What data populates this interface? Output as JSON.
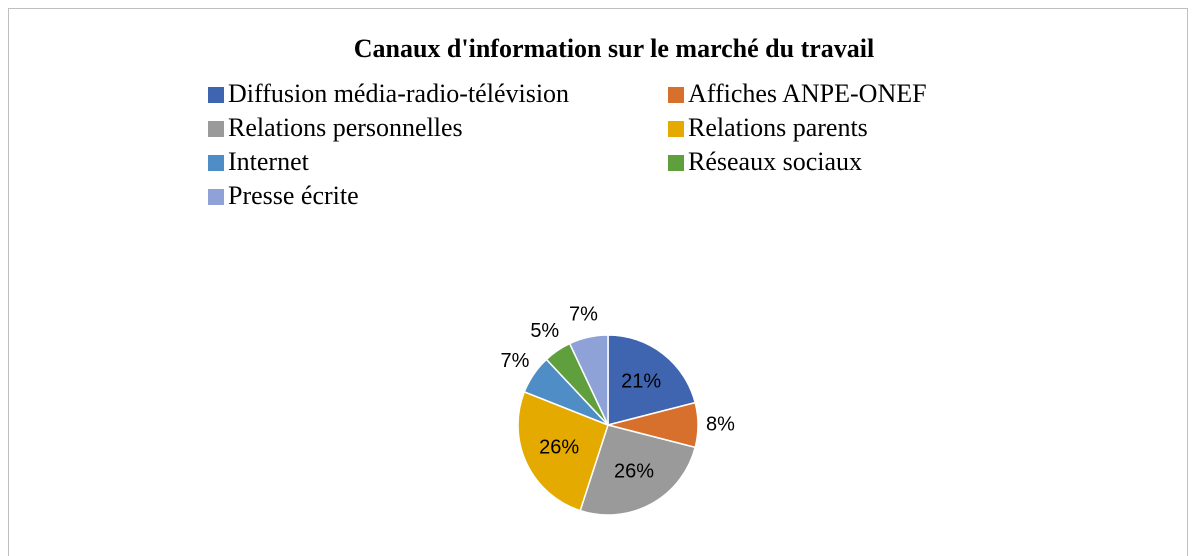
{
  "chart_data": {
    "type": "pie",
    "title": "Canaux d'information sur le marché du travail",
    "categories": [
      "Diffusion média-radio-télévision",
      "Affiches ANPE-ONEF",
      "Relations personnelles",
      "Relations parents",
      "Internet",
      "Réseaux sociaux",
      "Presse écrite"
    ],
    "values": [
      21,
      8,
      26,
      26,
      7,
      5,
      7
    ],
    "value_labels": [
      "21%",
      "8%",
      "26%",
      "26%",
      "7%",
      "5%",
      "7%"
    ],
    "colors": [
      "#4065b0",
      "#d8702d",
      "#9a9a9a",
      "#e5aa00",
      "#4f8dc6",
      "#5f9f3d",
      "#8ea2d8"
    ],
    "legend": "top"
  }
}
